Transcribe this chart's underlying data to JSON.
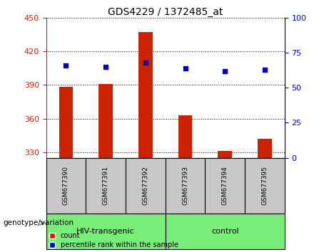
{
  "title": "GDS4229 / 1372485_at",
  "samples": [
    "GSM677390",
    "GSM677391",
    "GSM677392",
    "GSM677393",
    "GSM677394",
    "GSM677395"
  ],
  "counts": [
    388,
    391,
    437,
    363,
    331,
    342
  ],
  "percentiles": [
    66,
    65,
    68,
    64,
    62,
    63
  ],
  "ylim_left": [
    325,
    450
  ],
  "ylim_right": [
    0,
    100
  ],
  "yticks_left": [
    330,
    360,
    390,
    420,
    450
  ],
  "yticks_right": [
    0,
    25,
    50,
    75,
    100
  ],
  "bar_color": "#cc2200",
  "scatter_color": "#0000cc",
  "bar_bottom": 325,
  "groups": [
    {
      "label": "HIV-transgenic",
      "indices": [
        0,
        1,
        2
      ],
      "color": "#77ee77"
    },
    {
      "label": "control",
      "indices": [
        3,
        4,
        5
      ],
      "color": "#77ee77"
    }
  ],
  "group_label": "genotype/variation",
  "legend_count_label": "count",
  "legend_percentile_label": "percentile rank within the sample",
  "tick_color_left": "#cc2200",
  "tick_color_right": "#0000cc",
  "sample_box_color": "#c8c8c8",
  "fig_width": 4.61,
  "fig_height": 3.54,
  "dpi": 100
}
